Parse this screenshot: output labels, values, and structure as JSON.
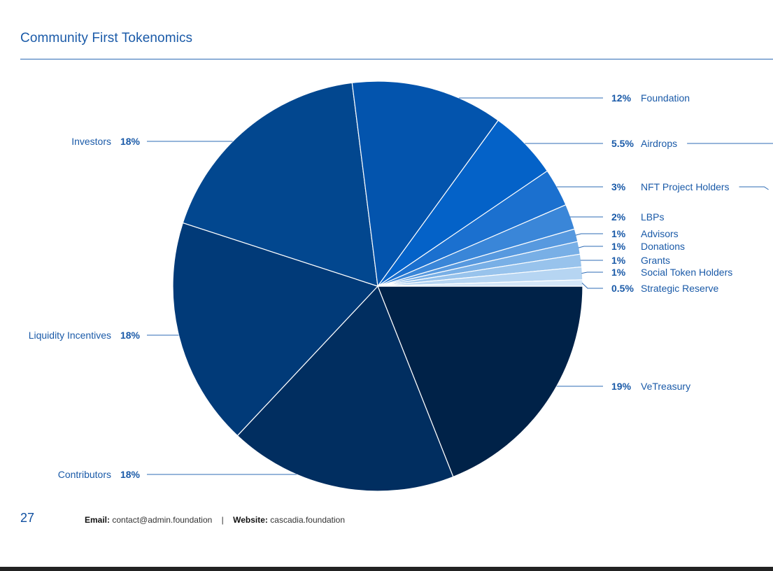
{
  "page": {
    "title": "Community First Tokenomics",
    "page_number": "27",
    "footer": {
      "email_label": "Email:",
      "email": "contact@admin.foundation",
      "separator": "|",
      "website_label": "Website:",
      "website": "cascadia.foundation"
    }
  },
  "chart_data": {
    "type": "pie",
    "title": "Community First Tokenomics",
    "slices": [
      {
        "label": "VeTreasury",
        "pct_label": "19%",
        "value": 19,
        "color": "#002248"
      },
      {
        "label": "Contributors",
        "pct_label": "18%",
        "value": 18,
        "color": "#012e60"
      },
      {
        "label": "Liquidity Incentives",
        "pct_label": "18%",
        "value": 18,
        "color": "#013a78"
      },
      {
        "label": "Investors",
        "pct_label": "18%",
        "value": 18,
        "color": "#02478f"
      },
      {
        "label": "Foundation",
        "pct_label": "12%",
        "value": 12,
        "color": "#0354ad"
      },
      {
        "label": "Airdrops",
        "pct_label": "5.5%",
        "value": 5.5,
        "color": "#0462c8"
      },
      {
        "label": "NFT Project Holders",
        "pct_label": "3%",
        "value": 3,
        "color": "#1b70cf"
      },
      {
        "label": "LBPs",
        "pct_label": "2%",
        "value": 2,
        "color": "#3a86d8"
      },
      {
        "label": "Advisors",
        "pct_label": "1%",
        "value": 1,
        "color": "#5799df"
      },
      {
        "label": "Donations",
        "pct_label": "1%",
        "value": 1,
        "color": "#78afe6"
      },
      {
        "label": "Grants",
        "pct_label": "1%",
        "value": 1,
        "color": "#98c3ec"
      },
      {
        "label": "Social Token Holders",
        "pct_label": "1%",
        "value": 1,
        "color": "#b6d5f2"
      },
      {
        "label": "Strategic Reserve",
        "pct_label": "0.5%",
        "value": 0.5,
        "color": "#d3e6f8"
      }
    ],
    "text_color": "#1a5aa8",
    "leader_color": "#2d6bb5"
  }
}
